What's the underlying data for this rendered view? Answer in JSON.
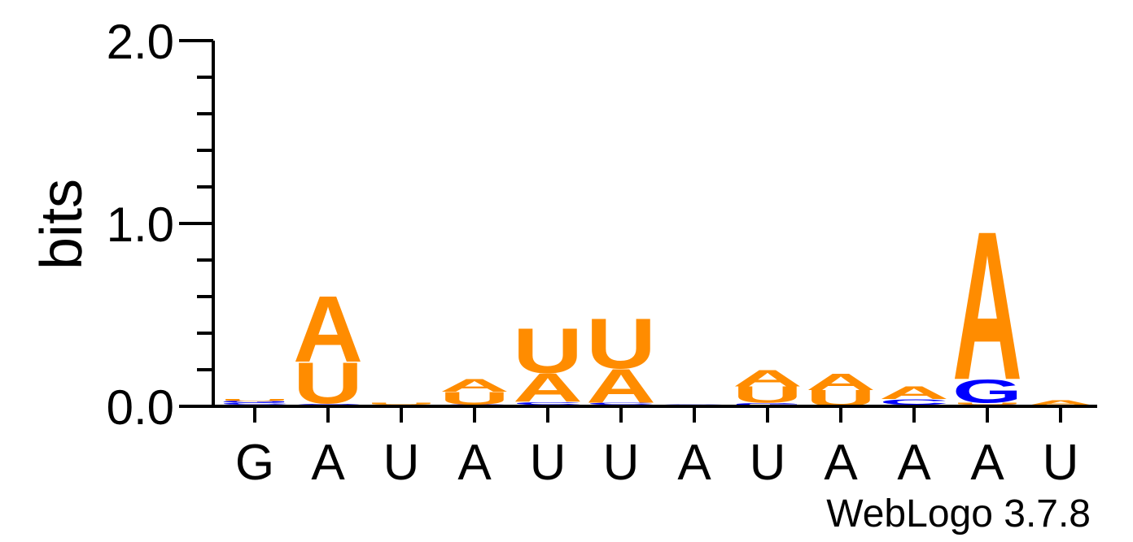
{
  "colors": {
    "A": "#ff8c00",
    "U": "#ff8c00",
    "C": "#0000ff",
    "G": "#0000ff",
    "axis": "#000000"
  },
  "credit": "WebLogo 3.7.8",
  "chart_data": {
    "type": "sequence-logo",
    "ylabel": "bits",
    "ylim": [
      0,
      2.0
    ],
    "y_ticks": [
      {
        "value": 0.0,
        "label": "0.0"
      },
      {
        "value": 1.0,
        "label": "1.0"
      },
      {
        "value": 2.0,
        "label": "2.0"
      }
    ],
    "x_labels": [
      "G",
      "A",
      "U",
      "A",
      "U",
      "U",
      "A",
      "U",
      "A",
      "A",
      "A",
      "U"
    ],
    "positions": [
      {
        "stack": [
          {
            "letter": "A",
            "h": 0.01
          },
          {
            "letter": "C",
            "h": 0.01
          },
          {
            "letter": "G",
            "h": 0.01
          },
          {
            "letter": "U",
            "h": 0.01
          }
        ]
      },
      {
        "stack": [
          {
            "letter": "C",
            "h": 0.015
          },
          {
            "letter": "U",
            "h": 0.23
          },
          {
            "letter": "A",
            "h": 0.37
          }
        ]
      },
      {
        "stack": [
          {
            "letter": "A",
            "h": 0.01
          },
          {
            "letter": "U",
            "h": 0.01
          }
        ]
      },
      {
        "stack": [
          {
            "letter": "C",
            "h": 0.01
          },
          {
            "letter": "U",
            "h": 0.07
          },
          {
            "letter": "A",
            "h": 0.07
          }
        ]
      },
      {
        "stack": [
          {
            "letter": "G",
            "h": 0.01
          },
          {
            "letter": "C",
            "h": 0.015
          },
          {
            "letter": "A",
            "h": 0.16
          },
          {
            "letter": "U",
            "h": 0.25
          }
        ]
      },
      {
        "stack": [
          {
            "letter": "G",
            "h": 0.01
          },
          {
            "letter": "C",
            "h": 0.01
          },
          {
            "letter": "A",
            "h": 0.19
          },
          {
            "letter": "U",
            "h": 0.28
          }
        ]
      },
      {
        "stack": [
          {
            "letter": "C",
            "h": 0.005
          },
          {
            "letter": "G",
            "h": 0.005
          }
        ]
      },
      {
        "stack": [
          {
            "letter": "U",
            "h": 0.005
          },
          {
            "letter": "G",
            "h": 0.015
          },
          {
            "letter": "U",
            "h": 0.09
          },
          {
            "letter": "A",
            "h": 0.09
          }
        ]
      },
      {
        "stack": [
          {
            "letter": "U",
            "h": 0.09
          },
          {
            "letter": "A",
            "h": 0.09
          }
        ]
      },
      {
        "stack": [
          {
            "letter": "G",
            "h": 0.01
          },
          {
            "letter": "C",
            "h": 0.03
          },
          {
            "letter": "A",
            "h": 0.07
          }
        ]
      },
      {
        "stack": [
          {
            "letter": "C",
            "h": 0.01
          },
          {
            "letter": "U",
            "h": 0.01
          },
          {
            "letter": "G",
            "h": 0.13
          },
          {
            "letter": "A",
            "h": 0.83
          }
        ]
      },
      {
        "stack": [
          {
            "letter": "U",
            "h": 0.005
          },
          {
            "letter": "A",
            "h": 0.03
          }
        ]
      }
    ]
  }
}
